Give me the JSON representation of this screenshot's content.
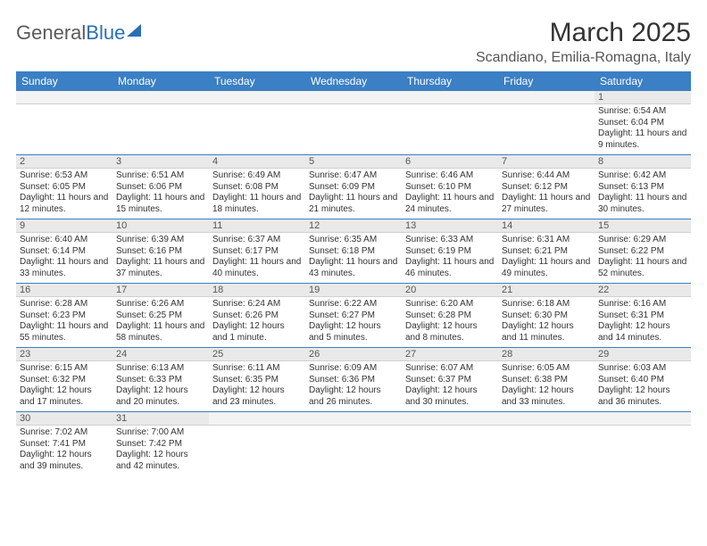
{
  "logo": {
    "part1": "General",
    "part2": "Blue"
  },
  "title": "March 2025",
  "location": "Scandiano, Emilia-Romagna, Italy",
  "colors": {
    "header_bg": "#3b7fc4",
    "header_text": "#ffffff",
    "daynum_bg": "#e9e9e9",
    "row_border": "#3b7fc4",
    "logo_gray": "#5a5a5a",
    "logo_blue": "#2a6fb5"
  },
  "day_headers": [
    "Sunday",
    "Monday",
    "Tuesday",
    "Wednesday",
    "Thursday",
    "Friday",
    "Saturday"
  ],
  "weeks": [
    [
      null,
      null,
      null,
      null,
      null,
      null,
      {
        "n": 1,
        "sr": "6:54 AM",
        "ss": "6:04 PM",
        "dl": "11 hours and 9 minutes."
      }
    ],
    [
      {
        "n": 2,
        "sr": "6:53 AM",
        "ss": "6:05 PM",
        "dl": "11 hours and 12 minutes."
      },
      {
        "n": 3,
        "sr": "6:51 AM",
        "ss": "6:06 PM",
        "dl": "11 hours and 15 minutes."
      },
      {
        "n": 4,
        "sr": "6:49 AM",
        "ss": "6:08 PM",
        "dl": "11 hours and 18 minutes."
      },
      {
        "n": 5,
        "sr": "6:47 AM",
        "ss": "6:09 PM",
        "dl": "11 hours and 21 minutes."
      },
      {
        "n": 6,
        "sr": "6:46 AM",
        "ss": "6:10 PM",
        "dl": "11 hours and 24 minutes."
      },
      {
        "n": 7,
        "sr": "6:44 AM",
        "ss": "6:12 PM",
        "dl": "11 hours and 27 minutes."
      },
      {
        "n": 8,
        "sr": "6:42 AM",
        "ss": "6:13 PM",
        "dl": "11 hours and 30 minutes."
      }
    ],
    [
      {
        "n": 9,
        "sr": "6:40 AM",
        "ss": "6:14 PM",
        "dl": "11 hours and 33 minutes."
      },
      {
        "n": 10,
        "sr": "6:39 AM",
        "ss": "6:16 PM",
        "dl": "11 hours and 37 minutes."
      },
      {
        "n": 11,
        "sr": "6:37 AM",
        "ss": "6:17 PM",
        "dl": "11 hours and 40 minutes."
      },
      {
        "n": 12,
        "sr": "6:35 AM",
        "ss": "6:18 PM",
        "dl": "11 hours and 43 minutes."
      },
      {
        "n": 13,
        "sr": "6:33 AM",
        "ss": "6:19 PM",
        "dl": "11 hours and 46 minutes."
      },
      {
        "n": 14,
        "sr": "6:31 AM",
        "ss": "6:21 PM",
        "dl": "11 hours and 49 minutes."
      },
      {
        "n": 15,
        "sr": "6:29 AM",
        "ss": "6:22 PM",
        "dl": "11 hours and 52 minutes."
      }
    ],
    [
      {
        "n": 16,
        "sr": "6:28 AM",
        "ss": "6:23 PM",
        "dl": "11 hours and 55 minutes."
      },
      {
        "n": 17,
        "sr": "6:26 AM",
        "ss": "6:25 PM",
        "dl": "11 hours and 58 minutes."
      },
      {
        "n": 18,
        "sr": "6:24 AM",
        "ss": "6:26 PM",
        "dl": "12 hours and 1 minute."
      },
      {
        "n": 19,
        "sr": "6:22 AM",
        "ss": "6:27 PM",
        "dl": "12 hours and 5 minutes."
      },
      {
        "n": 20,
        "sr": "6:20 AM",
        "ss": "6:28 PM",
        "dl": "12 hours and 8 minutes."
      },
      {
        "n": 21,
        "sr": "6:18 AM",
        "ss": "6:30 PM",
        "dl": "12 hours and 11 minutes."
      },
      {
        "n": 22,
        "sr": "6:16 AM",
        "ss": "6:31 PM",
        "dl": "12 hours and 14 minutes."
      }
    ],
    [
      {
        "n": 23,
        "sr": "6:15 AM",
        "ss": "6:32 PM",
        "dl": "12 hours and 17 minutes."
      },
      {
        "n": 24,
        "sr": "6:13 AM",
        "ss": "6:33 PM",
        "dl": "12 hours and 20 minutes."
      },
      {
        "n": 25,
        "sr": "6:11 AM",
        "ss": "6:35 PM",
        "dl": "12 hours and 23 minutes."
      },
      {
        "n": 26,
        "sr": "6:09 AM",
        "ss": "6:36 PM",
        "dl": "12 hours and 26 minutes."
      },
      {
        "n": 27,
        "sr": "6:07 AM",
        "ss": "6:37 PM",
        "dl": "12 hours and 30 minutes."
      },
      {
        "n": 28,
        "sr": "6:05 AM",
        "ss": "6:38 PM",
        "dl": "12 hours and 33 minutes."
      },
      {
        "n": 29,
        "sr": "6:03 AM",
        "ss": "6:40 PM",
        "dl": "12 hours and 36 minutes."
      }
    ],
    [
      {
        "n": 30,
        "sr": "7:02 AM",
        "ss": "7:41 PM",
        "dl": "12 hours and 39 minutes."
      },
      {
        "n": 31,
        "sr": "7:00 AM",
        "ss": "7:42 PM",
        "dl": "12 hours and 42 minutes."
      },
      null,
      null,
      null,
      null,
      null
    ]
  ],
  "labels": {
    "sunrise": "Sunrise:",
    "sunset": "Sunset:",
    "daylight": "Daylight:"
  }
}
